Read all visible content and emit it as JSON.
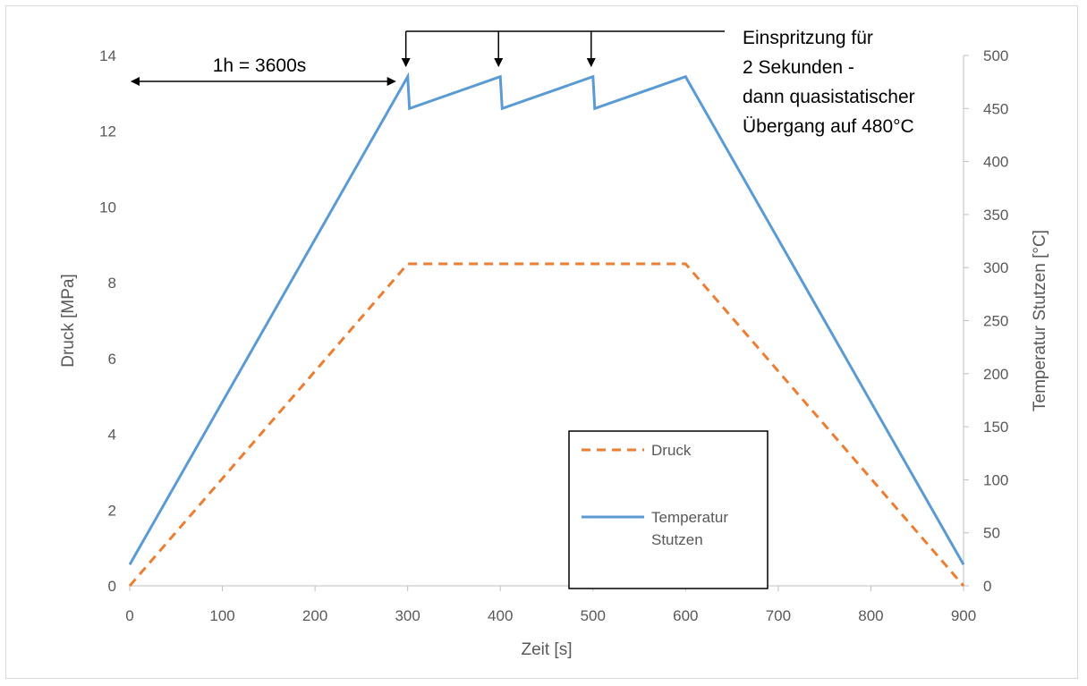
{
  "chart_data": {
    "type": "line",
    "xlabel": "Zeit [s]",
    "ylabel": "Druck [MPa]",
    "y2label": "Temperatur Stutzen [°C]",
    "xlim": [
      0,
      900
    ],
    "ylim": [
      0,
      14
    ],
    "y2lim": [
      0,
      500
    ],
    "x_ticks": [
      "0",
      "100",
      "200",
      "300",
      "400",
      "500",
      "600",
      "700",
      "800",
      "900"
    ],
    "y_ticks": [
      "0",
      "2",
      "4",
      "6",
      "8",
      "10",
      "12",
      "14"
    ],
    "y2_ticks": [
      "0",
      "50",
      "100",
      "150",
      "200",
      "250",
      "300",
      "350",
      "400",
      "450",
      "500"
    ],
    "grid": false,
    "legend_position": "bottom-right inside plot",
    "series": [
      {
        "name": "Druck",
        "axis": "left",
        "style": "dashed",
        "color": "#ED7D31",
        "x": [
          0,
          300,
          600,
          900
        ],
        "y": [
          0,
          8.5,
          8.5,
          0
        ]
      },
      {
        "name": "Temperatur Stutzen",
        "axis": "right",
        "style": "solid",
        "color": "#5B9BD5",
        "x": [
          0,
          300,
          302,
          400,
          402,
          500,
          502,
          600,
          900
        ],
        "y": [
          20,
          480,
          450,
          480,
          450,
          480,
          450,
          480,
          20
        ]
      }
    ],
    "legend": {
      "druck_label": "Druck",
      "temp_label_line1": "Temperatur",
      "temp_label_line2": "Stutzen"
    },
    "annotations": {
      "duration_label": "1h = 3600s",
      "injection_line1": "Einspritzung für",
      "injection_line2": "2 Sekunden -",
      "injection_line3": "dann quasistatischer",
      "injection_line4": "Übergang auf 480°C",
      "injection_arrow_x": [
        300,
        400,
        500
      ]
    }
  }
}
